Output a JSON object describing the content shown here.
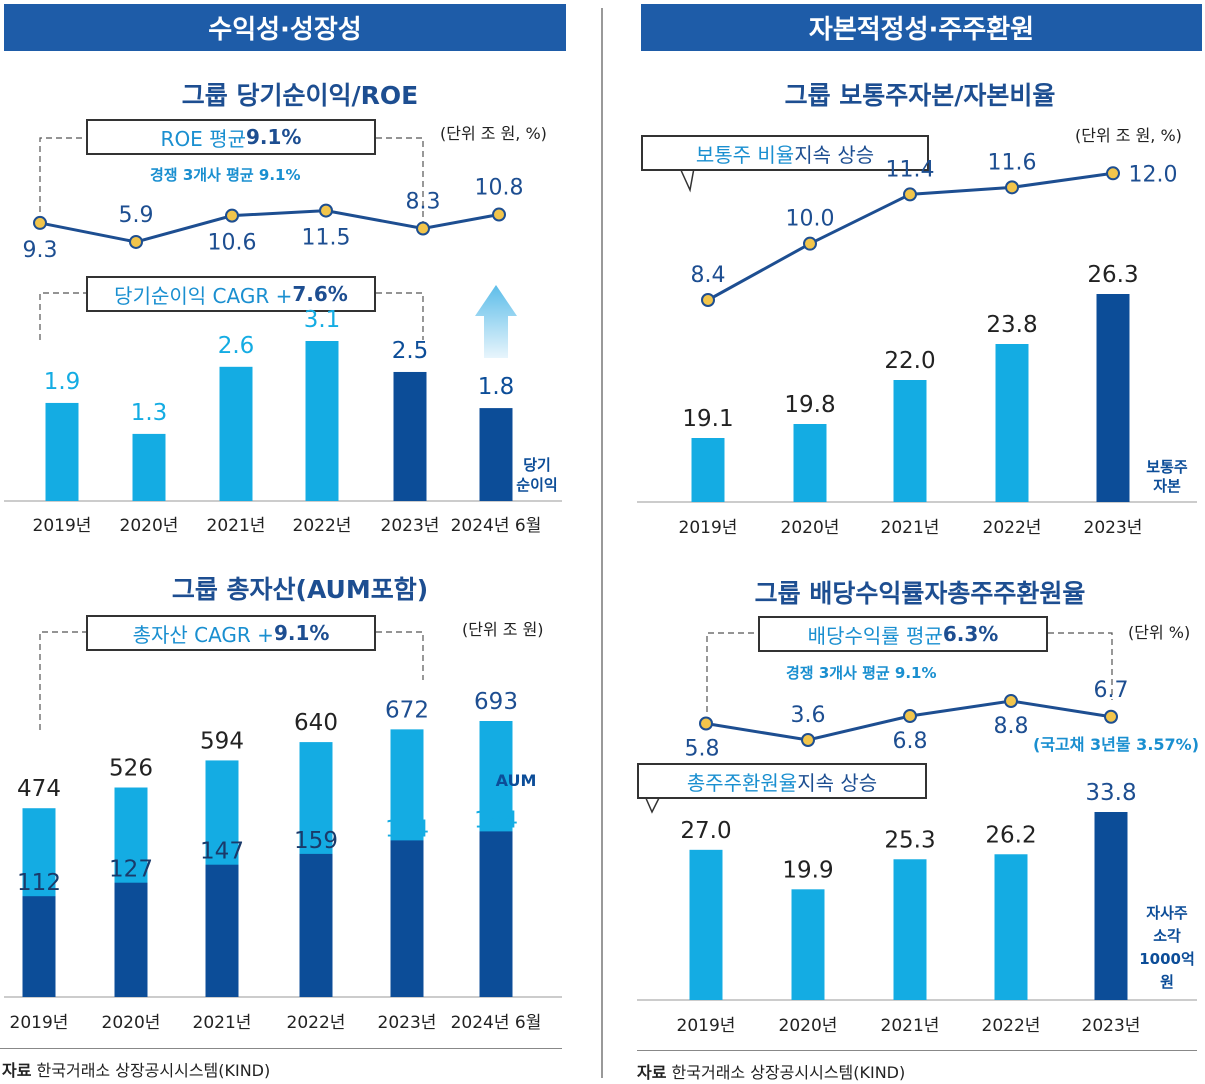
{
  "headers": {
    "left": "수익성·성장성",
    "right": "자본적정성·주주환원"
  },
  "chart_data": [
    {
      "type": "bar",
      "title": "그룹 당기순이익/ROE",
      "unit": "(단위 조 원, %)",
      "categories": [
        "2019년",
        "2020년",
        "2021년",
        "2022년",
        "2023년",
        "2024년 6월"
      ],
      "series": [
        {
          "name": "당기순이익",
          "type": "bar",
          "values": [
            1.9,
            1.3,
            2.6,
            3.1,
            2.5,
            1.8
          ],
          "labels": [
            "1.9",
            "1.3",
            "2.6",
            "3.1",
            "2.5",
            "1.8"
          ]
        },
        {
          "name": "ROE",
          "type": "line",
          "values": [
            9.3,
            5.9,
            10.6,
            11.5,
            8.3,
            10.8
          ],
          "labels": [
            "9.3",
            "5.9",
            "10.6",
            "11.5",
            "8.3",
            "10.8"
          ]
        }
      ],
      "bar_label": [
        "당기",
        "순이익"
      ],
      "callouts": {
        "roe_prefix": "ROE 평균 ",
        "roe_value": "9.1%",
        "peer": "경쟁 3개사 평균 9.1%",
        "cagr_prefix": "당기순이익 CAGR + ",
        "cagr_value": "7.6%"
      },
      "colors": {
        "light": "#14ace3",
        "dark": "#0c4d98",
        "line": "#1d4e91",
        "dot": "#f2c54b"
      }
    },
    {
      "type": "bar",
      "title": "그룹 보통주자본/자본비율",
      "unit": "(단위 조 원, %)",
      "categories": [
        "2019년",
        "2020년",
        "2021년",
        "2022년",
        "2023년"
      ],
      "series": [
        {
          "name": "보통주자본",
          "type": "bar",
          "values": [
            19.1,
            19.8,
            22.0,
            23.8,
            26.3
          ],
          "labels": [
            "19.1",
            "19.8",
            "22.0",
            "23.8",
            "26.3"
          ]
        },
        {
          "name": "보통주 비율",
          "type": "line",
          "values": [
            8.4,
            10.0,
            11.4,
            11.6,
            12.0
          ],
          "labels": [
            "8.4",
            "10.0",
            "11.4",
            "11.6",
            "12.0"
          ]
        }
      ],
      "bar_label": [
        "보통주",
        "자본"
      ],
      "callouts": {
        "trend_prefix": "보통주 비율 ",
        "trend_suffix": "지속 상승"
      },
      "colors": {
        "light": "#14ace3",
        "dark": "#0c4d98"
      }
    },
    {
      "type": "bar",
      "title": "그룹 총자산(AUM포함)",
      "unit": "(단위 조 원)",
      "categories": [
        "2019년",
        "2020년",
        "2021년",
        "2022년",
        "2023년",
        "2024년 6월"
      ],
      "series": [
        {
          "name": "총자산",
          "type": "bar",
          "values": [
            474,
            526,
            594,
            640,
            672,
            693
          ],
          "labels": [
            "474",
            "526",
            "594",
            "640",
            "672",
            "693"
          ]
        },
        {
          "name": "AUM",
          "type": "bar",
          "values": [
            112,
            127,
            147,
            159,
            174,
            184
          ],
          "labels": [
            "112",
            "127",
            "147",
            "159",
            "174",
            "184"
          ]
        }
      ],
      "aum_label": "AUM",
      "callouts": {
        "cagr_prefix": "총자산 CAGR + ",
        "cagr_value": "9.1%"
      },
      "colors": {
        "light": "#14ace3",
        "dark": "#0c4d98"
      }
    },
    {
      "type": "bar",
      "title": "그룹 배당수익률자총주주환원율",
      "unit": "(단위 %)",
      "categories": [
        "2019년",
        "2020년",
        "2021년",
        "2022년",
        "2023년"
      ],
      "series": [
        {
          "name": "총주주환원율",
          "type": "bar",
          "values": [
            27.0,
            19.9,
            25.3,
            26.2,
            33.8
          ],
          "labels": [
            "27.0",
            "19.9",
            "25.3",
            "26.2",
            "33.8"
          ]
        },
        {
          "name": "배당수익률",
          "type": "line",
          "values": [
            5.8,
            3.6,
            6.8,
            8.8,
            6.7
          ],
          "labels": [
            "5.8",
            "3.6",
            "6.8",
            "8.8",
            "6.7"
          ]
        }
      ],
      "bar_label": [
        "자사주",
        "소각",
        "1000억",
        "원"
      ],
      "callouts": {
        "div_prefix": "배당수익률 평균 ",
        "div_value": "6.3%",
        "peer": "경쟁 3개사 평균 9.1%",
        "bond": "(국고채 3년물 3.57%)",
        "trend_prefix": "총주주환원율 ",
        "trend_suffix": "지속 상승"
      },
      "colors": {
        "light": "#14ace3",
        "dark": "#0c4d98"
      }
    }
  ],
  "source": {
    "label": "자료",
    "text": " 한국거래소 상장공시시스템(KIND)"
  }
}
